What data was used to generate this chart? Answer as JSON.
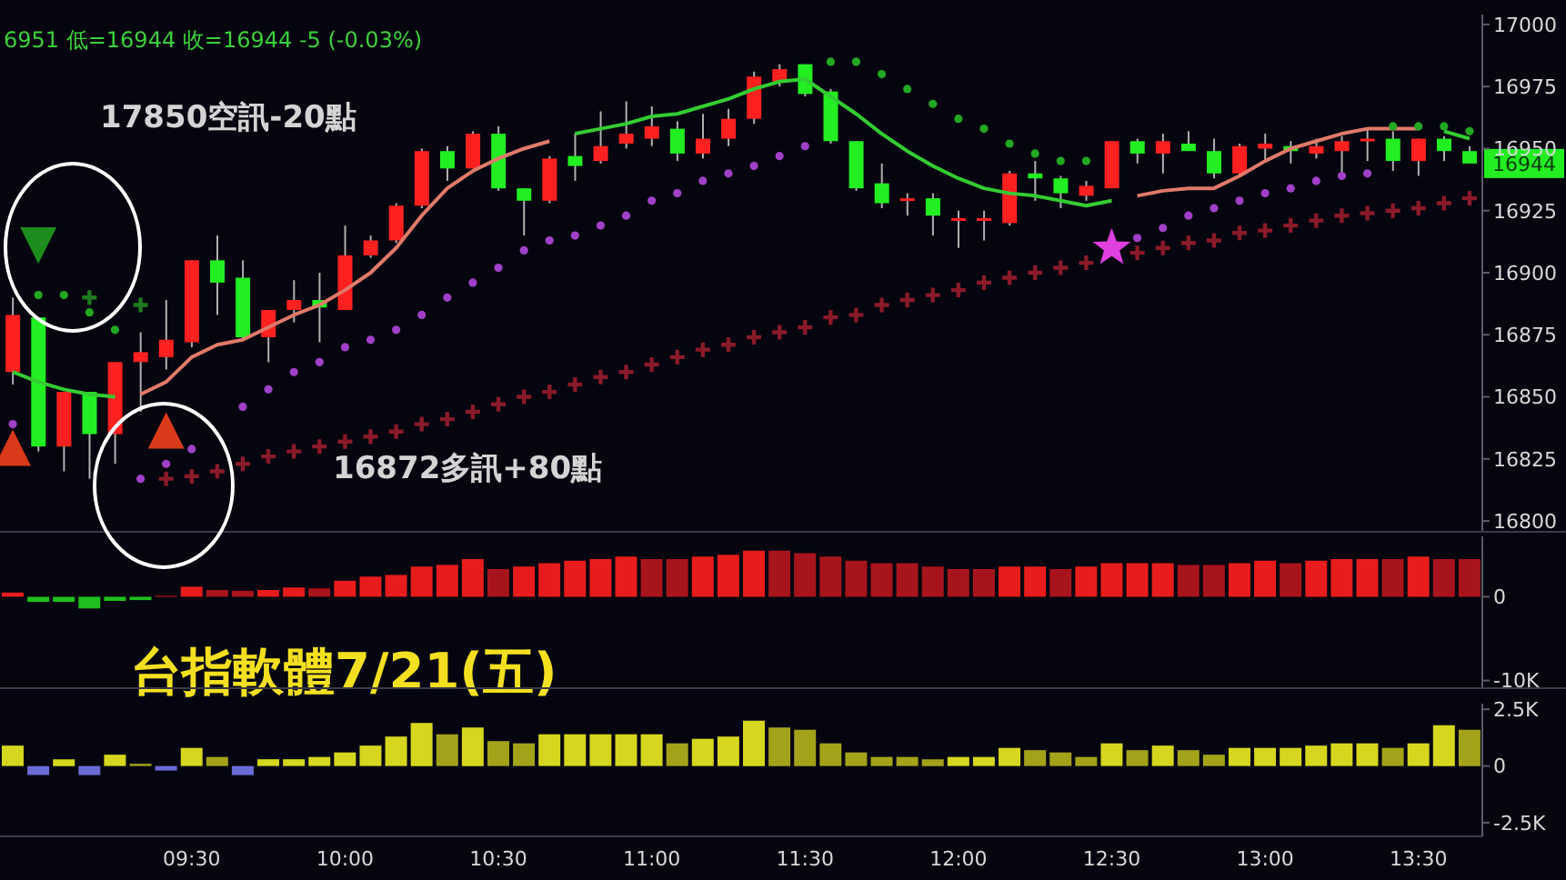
{
  "chart_data": [
    {
      "type": "candlestick",
      "categories": [
        null,
        null,
        null,
        null,
        null,
        null,
        null,
        null,
        null,
        null,
        null,
        null,
        null,
        null,
        null,
        null,
        null,
        null,
        null,
        null,
        null,
        null,
        null,
        null,
        null,
        null,
        null,
        null,
        null,
        null,
        null,
        null,
        null,
        null,
        null,
        null,
        null,
        null,
        null,
        null,
        null,
        null,
        null,
        null,
        null,
        null,
        null,
        null,
        null,
        null,
        null,
        null,
        null,
        null,
        null,
        null,
        null,
        null
      ],
      "ohlc": [
        [
          16860,
          16890,
          16855,
          16883
        ],
        [
          16882,
          16882,
          16828,
          16830
        ],
        [
          16830,
          16852,
          16820,
          16852
        ],
        [
          16852,
          16852,
          16817,
          16835
        ],
        [
          16835,
          16864,
          16823,
          16864
        ],
        [
          16864,
          16876,
          16844,
          16868
        ],
        [
          16866,
          16889,
          16861,
          16873
        ],
        [
          16872,
          16905,
          16870,
          16905
        ],
        [
          16905,
          16915,
          16883,
          16896
        ],
        [
          16898,
          16905,
          16873,
          16874
        ],
        [
          16874,
          16885,
          16864,
          16885
        ],
        [
          16885,
          16897,
          16880,
          16889
        ],
        [
          16889,
          16900,
          16872,
          16886
        ],
        [
          16885,
          16919,
          16885,
          16907
        ],
        [
          16907,
          16915,
          16906,
          16913
        ],
        [
          16913,
          16928,
          16912,
          16927
        ],
        [
          16927,
          16950,
          16926,
          16949
        ],
        [
          16949,
          16951,
          16937,
          16942
        ],
        [
          16942,
          16957,
          16942,
          16956
        ],
        [
          16956,
          16959,
          16933,
          16934
        ],
        [
          16934,
          16934,
          16915,
          16929
        ],
        [
          16929,
          16947,
          16928,
          16946
        ],
        [
          16947,
          16956,
          16937,
          16943
        ],
        [
          16945,
          16965,
          16944,
          16951
        ],
        [
          16952,
          16969,
          16950,
          16956
        ],
        [
          16954,
          16967,
          16951,
          16959
        ],
        [
          16958,
          16961,
          16945,
          16948
        ],
        [
          16948,
          16964,
          16946,
          16954
        ],
        [
          16954,
          16966,
          16951,
          16962
        ],
        [
          16962,
          16981,
          16960,
          16979
        ],
        [
          16977,
          16984,
          16975,
          16982
        ],
        [
          16984,
          16984,
          16971,
          16972
        ],
        [
          16973,
          16974,
          16952,
          16953
        ],
        [
          16953,
          16953,
          16933,
          16934
        ],
        [
          16936,
          16944,
          16926,
          16928
        ],
        [
          16929,
          16932,
          16923,
          16930
        ],
        [
          16930,
          16932,
          16915,
          16923
        ],
        [
          16922,
          16925,
          16910,
          16922
        ],
        [
          16922,
          16925,
          16913,
          16922
        ],
        [
          16920,
          16941,
          16919,
          16940
        ],
        [
          16940,
          16945,
          16929,
          16938
        ],
        [
          16938,
          16939,
          16926,
          16932
        ],
        [
          16931,
          16937,
          16929,
          16935
        ],
        [
          16934,
          16953,
          16934,
          16953
        ],
        [
          16953,
          16954,
          16944,
          16948
        ],
        [
          16948,
          16956,
          16940,
          16953
        ],
        [
          16952,
          16957,
          16949,
          16949
        ],
        [
          16949,
          16954,
          16938,
          16940
        ],
        [
          16940,
          16952,
          16939,
          16951
        ],
        [
          16950,
          16956,
          16945,
          16952
        ],
        [
          16951,
          16953,
          16944,
          16949
        ],
        [
          16948,
          16954,
          16946,
          16951
        ],
        [
          16949,
          16955,
          16940,
          16953
        ],
        [
          16953,
          16958,
          16945,
          16954
        ],
        [
          16954,
          16957,
          16941,
          16945
        ],
        [
          16945,
          16954,
          16939,
          16954
        ],
        [
          16954,
          16955,
          16945,
          16949
        ],
        [
          16949,
          16951,
          16944,
          16944
        ]
      ],
      "colors": [
        "#ff2020",
        "#22ee22",
        "#ff2020",
        "#22ee22",
        "#ff2020",
        "#ff2020",
        "#ff2020",
        "#ff2020",
        "#22ee22",
        "#22ee22",
        "#ff2020",
        "#ff2020",
        "#22ee22",
        "#ff2020",
        "#ff2020",
        "#ff2020",
        "#ff2020",
        "#22ee22",
        "#ff2020",
        "#22ee22",
        "#22ee22",
        "#ff2020",
        "#22ee22",
        "#ff2020",
        "#ff2020",
        "#ff2020",
        "#22ee22",
        "#ff2020",
        "#ff2020",
        "#ff2020",
        "#ff2020",
        "#22ee22",
        "#22ee22",
        "#22ee22",
        "#22ee22",
        "#ff2020",
        "#22ee22",
        "#ff2020",
        "#ff2020",
        "#ff2020",
        "#22ee22",
        "#22ee22",
        "#ff2020",
        "#ff2020",
        "#22ee22",
        "#ff2020",
        "#22ee22",
        "#22ee22",
        "#ff2020",
        "#ff2020",
        "#22ee22",
        "#ff2020",
        "#ff2020",
        "#ff2020",
        "#22ee22",
        "#ff2020",
        "#22ee22",
        "#22ee22"
      ],
      "series": [
        {
          "type": "line",
          "color": "#33cc33",
          "values": [
            16860,
            16856,
            16853,
            16851,
            16850,
            null,
            null,
            null,
            null,
            null,
            null,
            null,
            null,
            null,
            null,
            null,
            null,
            null,
            null,
            null,
            null,
            null,
            16956,
            16958,
            16960,
            16963,
            16964,
            16967,
            16970,
            16974,
            16977,
            16978,
            16971,
            16964,
            16956,
            16949,
            16943,
            16938,
            16934,
            16932,
            16931,
            16929,
            16927,
            16929,
            null,
            null,
            null,
            null,
            null,
            null,
            null,
            null,
            null,
            null,
            null,
            null,
            16957,
            16954
          ]
        },
        {
          "type": "line",
          "color": "#e07a6a",
          "values": [
            null,
            null,
            null,
            null,
            null,
            16851,
            16856,
            16866,
            16871,
            16873,
            16878,
            16883,
            16887,
            16893,
            16900,
            16910,
            16923,
            16934,
            16941,
            16946,
            16950,
            16953,
            null,
            null,
            null,
            null,
            null,
            null,
            null,
            null,
            null,
            null,
            null,
            null,
            null,
            null,
            null,
            null,
            null,
            null,
            null,
            null,
            null,
            null,
            16931,
            16933,
            16934,
            16934,
            16939,
            16945,
            16950,
            16953,
            16956,
            16958,
            16958,
            16958,
            null,
            null
          ]
        },
        {
          "type": "scatter",
          "marker": "circle",
          "color": "#22a822",
          "values": [
            null,
            16891,
            16891,
            16884,
            16877,
            null,
            null,
            null,
            null,
            null,
            null,
            null,
            null,
            null,
            null,
            null,
            null,
            null,
            null,
            null,
            null,
            null,
            null,
            null,
            null,
            null,
            null,
            null,
            null,
            null,
            null,
            null,
            16985,
            16985,
            16980,
            16974,
            16968,
            16962,
            16958,
            16952,
            16948,
            16945,
            16945,
            null,
            null,
            null,
            null,
            null,
            null,
            null,
            null,
            null,
            null,
            null,
            16959,
            16959,
            16959,
            16957
          ]
        },
        {
          "type": "scatter",
          "marker": "cross",
          "color": "#1e7a1e",
          "values": [
            null,
            null,
            null,
            16890,
            null,
            16887,
            null,
            null,
            null,
            null,
            null,
            null,
            null,
            null,
            null,
            null,
            null,
            null,
            null,
            null,
            null,
            null,
            null,
            null,
            null,
            null,
            null,
            null,
            null,
            null,
            null,
            null,
            null,
            null,
            null,
            null,
            null,
            null,
            null,
            null,
            null,
            null,
            null,
            null,
            null,
            null,
            null,
            null,
            null,
            null,
            null,
            null,
            null,
            null,
            null,
            null,
            null,
            null
          ]
        },
        {
          "type": "scatter",
          "marker": "circle",
          "color": "#a040c8",
          "values": [
            16839,
            null,
            null,
            null,
            null,
            16817,
            16823,
            16829,
            null,
            16846,
            16853,
            16860,
            16864,
            16870,
            16873,
            16877,
            16883,
            16890,
            16896,
            16902,
            16909,
            16913,
            16915,
            16919,
            16923,
            16929,
            16932,
            16937,
            16940,
            16943,
            16947,
            16951,
            null,
            null,
            null,
            null,
            null,
            null,
            null,
            null,
            null,
            null,
            null,
            null,
            16914,
            16918,
            16923,
            16926,
            16929,
            16932,
            16934,
            16937,
            16939,
            16940,
            null,
            null,
            null,
            null
          ]
        },
        {
          "type": "scatter",
          "marker": "cross",
          "color": "#8a1a2a",
          "values": [
            null,
            null,
            null,
            null,
            null,
            null,
            16817,
            16818,
            16820,
            16823,
            16826,
            16828,
            16830,
            16832,
            16834,
            16836,
            16839,
            16841,
            16844,
            16847,
            16850,
            16852,
            16855,
            16858,
            16860,
            16863,
            16866,
            16869,
            16871,
            16874,
            16876,
            16878,
            16882,
            16883,
            16887,
            16889,
            16891,
            16893,
            16896,
            16898,
            16900,
            16902,
            16904,
            null,
            16908,
            16910,
            16912,
            16913,
            16916,
            16917,
            16919,
            16921,
            16923,
            16924,
            16925,
            16926,
            16928,
            16930
          ]
        },
        {
          "type": "scatter",
          "marker": "triangle-down",
          "color": "#1c8c1c",
          "values": [
            null,
            16911,
            null,
            null,
            null,
            null,
            null,
            null,
            null,
            null,
            null,
            null,
            null,
            null,
            null,
            null,
            null,
            null,
            null,
            null,
            null,
            null,
            null,
            null,
            null,
            null,
            null,
            null,
            null,
            null,
            null,
            null,
            null,
            null,
            null,
            null,
            null,
            null,
            null,
            null,
            null,
            null,
            null,
            null,
            null,
            null,
            null,
            null,
            null,
            null,
            null,
            null,
            null,
            null,
            null,
            null,
            null,
            null
          ]
        },
        {
          "type": "scatter",
          "marker": "triangle",
          "color": "#d83a1a",
          "values": [
            16828,
            null,
            null,
            null,
            null,
            null,
            16835,
            null,
            null,
            null,
            null,
            null,
            null,
            null,
            null,
            null,
            null,
            null,
            null,
            null,
            null,
            null,
            null,
            null,
            null,
            null,
            null,
            null,
            null,
            null,
            null,
            null,
            null,
            null,
            null,
            null,
            null,
            null,
            null,
            null,
            null,
            null,
            null,
            null,
            null,
            null,
            null,
            null,
            null,
            null,
            null,
            null,
            null,
            null,
            null,
            null,
            null,
            null
          ]
        },
        {
          "type": "scatter",
          "marker": "star",
          "color": "#e040e0",
          "values": [
            null,
            null,
            null,
            null,
            null,
            null,
            null,
            null,
            null,
            null,
            null,
            null,
            null,
            null,
            null,
            null,
            null,
            null,
            null,
            null,
            null,
            null,
            null,
            null,
            null,
            null,
            null,
            null,
            null,
            null,
            null,
            null,
            null,
            null,
            null,
            null,
            null,
            null,
            null,
            null,
            null,
            null,
            null,
            16910,
            null,
            null,
            null,
            null,
            null,
            null,
            null,
            null,
            null,
            null,
            null,
            null,
            null,
            null
          ]
        }
      ],
      "ylim": [
        16796,
        17004
      ],
      "yticks": [
        16800,
        16825,
        16850,
        16875,
        16900,
        16925,
        16950,
        16975,
        17000
      ],
      "tick_labels": "y",
      "annotations": [
        "6951  低=16944  收=16944  -5 (-0.03%)",
        "17850空訊-20點",
        "16872多訊+80點",
        {
          "text": "16944",
          "y": 16944
        }
      ]
    },
    {
      "type": "bar",
      "categories": [
        null,
        null,
        null,
        null,
        null,
        null,
        null,
        null,
        null,
        null,
        null,
        null,
        null,
        null,
        null,
        null,
        null,
        null,
        null,
        null,
        null,
        null,
        null,
        null,
        null,
        null,
        null,
        null,
        null,
        null,
        null,
        null,
        null,
        null,
        null,
        null,
        null,
        null,
        null,
        null,
        null,
        null,
        null,
        null,
        null,
        null,
        null,
        null,
        null,
        null,
        null,
        null,
        null,
        null,
        null,
        null,
        null,
        null
      ],
      "values": [
        500,
        -600,
        -600,
        -1400,
        -500,
        -400,
        100,
        1200,
        800,
        700,
        800,
        1100,
        1000,
        1900,
        2400,
        2600,
        3600,
        3800,
        4500,
        3300,
        3600,
        4000,
        4300,
        4500,
        4800,
        4500,
        4500,
        4800,
        5000,
        5500,
        5500,
        5200,
        4800,
        4300,
        4000,
        4000,
        3600,
        3300,
        3300,
        3600,
        3600,
        3300,
        3600,
        4000,
        4000,
        4000,
        3800,
        3800,
        4000,
        4300,
        4000,
        4300,
        4500,
        4500,
        4500,
        4800,
        4500,
        4500
      ],
      "colors": [
        "#e81c1c",
        "#1fbf1f",
        "#1fbf1f",
        "#1fbf1f",
        "#1fbf1f",
        "#1fbf1f",
        "#e81c1c",
        "#e81c1c",
        "#a8141c",
        "#a8141c",
        "#e81c1c",
        "#e81c1c",
        "#a8141c",
        "#e81c1c",
        "#e81c1c",
        "#e81c1c",
        "#e81c1c",
        "#e81c1c",
        "#e81c1c",
        "#a8141c",
        "#e81c1c",
        "#e81c1c",
        "#e81c1c",
        "#e81c1c",
        "#e81c1c",
        "#a8141c",
        "#a8141c",
        "#e81c1c",
        "#e81c1c",
        "#e81c1c",
        "#a8141c",
        "#a8141c",
        "#a8141c",
        "#a8141c",
        "#a8141c",
        "#a8141c",
        "#a8141c",
        "#a8141c",
        "#a8141c",
        "#e81c1c",
        "#e81c1c",
        "#a8141c",
        "#e81c1c",
        "#e81c1c",
        "#e81c1c",
        "#e81c1c",
        "#a8141c",
        "#a8141c",
        "#e81c1c",
        "#e81c1c",
        "#a8141c",
        "#e81c1c",
        "#e81c1c",
        "#e81c1c",
        "#a8141c",
        "#e81c1c",
        "#a8141c",
        "#a8141c"
      ],
      "ylim": [
        -10800,
        7200
      ],
      "yticks": [
        0,
        {
          "value": -10000,
          "label": "-10K"
        }
      ],
      "tick_labels": "y",
      "annotations": [
        "台指軟體7/21(五)"
      ]
    },
    {
      "type": "bar",
      "categories": [
        null,
        null,
        null,
        null,
        null,
        null,
        null,
        "09:30",
        null,
        null,
        null,
        null,
        null,
        "10:00",
        null,
        null,
        null,
        null,
        null,
        "10:30",
        null,
        null,
        null,
        null,
        null,
        "11:00",
        null,
        null,
        null,
        null,
        null,
        "11:30",
        null,
        null,
        null,
        null,
        null,
        "12:00",
        null,
        null,
        null,
        null,
        null,
        "12:30",
        null,
        null,
        null,
        null,
        null,
        "13:00",
        null,
        null,
        null,
        null,
        null,
        "13:30",
        null,
        null
      ],
      "values": [
        900,
        -400,
        300,
        -400,
        500,
        100,
        -200,
        800,
        400,
        -400,
        300,
        300,
        400,
        600,
        900,
        1300,
        1900,
        1400,
        1700,
        1100,
        1000,
        1400,
        1400,
        1400,
        1400,
        1400,
        1000,
        1200,
        1300,
        2000,
        1700,
        1600,
        1000,
        600,
        400,
        400,
        300,
        400,
        400,
        800,
        700,
        600,
        400,
        1000,
        700,
        900,
        700,
        500,
        800,
        800,
        800,
        900,
        1000,
        1000,
        800,
        1000,
        1800,
        1600
      ],
      "colors": [
        "#d6d61e",
        "#6b6bd6",
        "#d6d61e",
        "#6b6bd6",
        "#d6d61e",
        "#a3a31a",
        "#6b6bd6",
        "#d6d61e",
        "#a3a31a",
        "#6b6bd6",
        "#d6d61e",
        "#d6d61e",
        "#d6d61e",
        "#d6d61e",
        "#d6d61e",
        "#d6d61e",
        "#d6d61e",
        "#a3a31a",
        "#d6d61e",
        "#a3a31a",
        "#a3a31a",
        "#d6d61e",
        "#d6d61e",
        "#d6d61e",
        "#d6d61e",
        "#d6d61e",
        "#a3a31a",
        "#d6d61e",
        "#d6d61e",
        "#d6d61e",
        "#a3a31a",
        "#a3a31a",
        "#a3a31a",
        "#a3a31a",
        "#a3a31a",
        "#a3a31a",
        "#a3a31a",
        "#d6d61e",
        "#d6d61e",
        "#d6d61e",
        "#a3a31a",
        "#a3a31a",
        "#a3a31a",
        "#d6d61e",
        "#a3a31a",
        "#d6d61e",
        "#a3a31a",
        "#a3a31a",
        "#d6d61e",
        "#d6d61e",
        "#d6d61e",
        "#d6d61e",
        "#d6d61e",
        "#d6d61e",
        "#a3a31a",
        "#d6d61e",
        "#d6d61e",
        "#a3a31a"
      ],
      "ylim": [
        -3100,
        2750
      ],
      "yticks": [
        {
          "value": 2500,
          "label": "2.5K"
        },
        0,
        {
          "value": -2500,
          "label": "-2.5K"
        }
      ]
    }
  ]
}
